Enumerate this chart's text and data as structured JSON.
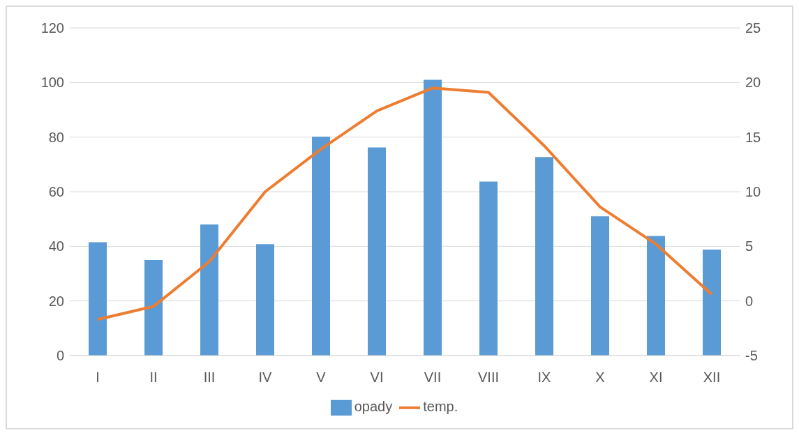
{
  "chart_data": {
    "type": "bar",
    "categories": [
      "I",
      "II",
      "III",
      "IV",
      "V",
      "VI",
      "VII",
      "VIII",
      "IX",
      "X",
      "XI",
      "XII"
    ],
    "series": [
      {
        "name": "opady",
        "color": "#5b9bd5",
        "values": [
          41.5,
          35,
          48,
          40.8,
          80.2,
          76.2,
          101,
          63.7,
          72.7,
          51,
          43.8,
          38.8
        ]
      },
      {
        "name": "temp.",
        "type": "line",
        "axis": "y2",
        "color": "#ed7d31",
        "values": [
          -1.7,
          -0.5,
          3.6,
          10,
          13.9,
          17.4,
          19.5,
          19.1,
          14.2,
          8.6,
          5.2,
          0.6
        ]
      }
    ],
    "ylim": [
      0,
      120
    ],
    "yticks": [
      0,
      20,
      40,
      60,
      80,
      100,
      120
    ],
    "y2lim": [
      -5,
      25
    ],
    "y2ticks": [
      -5,
      0,
      5,
      10,
      15,
      20,
      25
    ],
    "grid": "y",
    "legend": "bottom",
    "marker": "none",
    "line_style": "solid"
  }
}
